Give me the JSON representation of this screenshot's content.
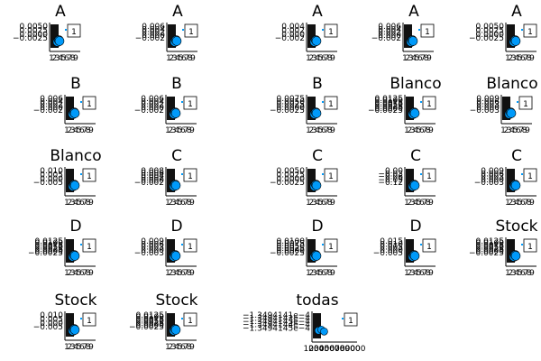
{
  "chart_data": [
    {
      "type": "scatter",
      "title": "A",
      "yticks": [
        "0.0050",
        "0.0025",
        "0.0000",
        "−0.0025"
      ],
      "xticks": [
        "1",
        "2",
        "3",
        "4",
        "5",
        "6",
        "7",
        "8",
        "9"
      ],
      "legend": "1",
      "series": [
        {
          "points": [
            [
              0.7,
              0.3
            ],
            [
              0.9,
              0.4
            ],
            [
              1.0,
              0.35
            ]
          ]
        }
      ],
      "accent": "#009AFA"
    },
    {
      "type": "scatter",
      "title": "A",
      "yticks": [
        "0.006",
        "0.004",
        "0.002",
        "0.000",
        "−0.002"
      ],
      "xticks": [
        "1",
        "2",
        "3",
        "4",
        "5",
        "6",
        "7",
        "8",
        "9"
      ],
      "legend": "1",
      "series": [
        {
          "points": [
            [
              0.7,
              0.3
            ],
            [
              0.9,
              0.4
            ],
            [
              1.0,
              0.35
            ]
          ]
        }
      ],
      "accent": "#009AFA"
    },
    {
      "type": "scatter",
      "title": "A",
      "yticks": [
        "0.004",
        "0.002",
        "0.000",
        "−0.002"
      ],
      "xticks": [
        "1",
        "2",
        "3",
        "4",
        "5",
        "6",
        "7",
        "8",
        "9"
      ],
      "legend": "1",
      "series": [
        {
          "points": [
            [
              0.7,
              0.3
            ],
            [
              0.9,
              0.4
            ],
            [
              1.0,
              0.35
            ]
          ]
        }
      ],
      "accent": "#009AFA"
    },
    {
      "type": "scatter",
      "title": "A",
      "yticks": [
        "0.006",
        "0.004",
        "0.002",
        "0.000",
        "−0.002"
      ],
      "xticks": [
        "1",
        "2",
        "3",
        "4",
        "5",
        "6",
        "7",
        "8",
        "9"
      ],
      "legend": "1",
      "series": [
        {
          "points": [
            [
              0.7,
              0.3
            ],
            [
              0.9,
              0.4
            ],
            [
              1.0,
              0.35
            ]
          ]
        }
      ],
      "accent": "#009AFA"
    },
    {
      "type": "scatter",
      "title": "A",
      "yticks": [
        "0.0050",
        "0.0025",
        "0.0000",
        "−0.0025"
      ],
      "xticks": [
        "1",
        "2",
        "3",
        "4",
        "5",
        "6",
        "7",
        "8",
        "9"
      ],
      "legend": "1",
      "series": [
        {
          "points": [
            [
              0.7,
              0.3
            ],
            [
              0.9,
              0.4
            ],
            [
              1.0,
              0.35
            ]
          ]
        }
      ],
      "accent": "#009AFA"
    },
    {
      "type": "scatter",
      "title": "B",
      "yticks": [
        "0.006",
        "0.004",
        "0.002",
        "0.000",
        "−0.002"
      ],
      "xticks": [
        "1",
        "2",
        "3",
        "4",
        "5",
        "6",
        "7",
        "8",
        "9"
      ],
      "legend": "1",
      "series": [
        {
          "points": [
            [
              0.7,
              0.3
            ],
            [
              0.9,
              0.4
            ],
            [
              1.0,
              0.35
            ]
          ]
        }
      ],
      "accent": "#009AFA"
    },
    {
      "type": "scatter",
      "title": "B",
      "yticks": [
        "0.006",
        "0.004",
        "0.002",
        "0.000",
        "−0.002"
      ],
      "xticks": [
        "1",
        "2",
        "3",
        "4",
        "5",
        "6",
        "7",
        "8",
        "9"
      ],
      "legend": "1",
      "series": [
        {
          "points": [
            [
              0.7,
              0.3
            ],
            [
              0.9,
              0.4
            ],
            [
              1.0,
              0.35
            ]
          ]
        }
      ],
      "accent": "#009AFA"
    },
    {
      "type": "scatter",
      "title": "B",
      "yticks": [
        "0.0075",
        "0.0050",
        "0.0025",
        "0.0000",
        "−0.0025"
      ],
      "xticks": [
        "1",
        "2",
        "3",
        "4",
        "5",
        "6",
        "7",
        "8",
        "9"
      ],
      "legend": "1",
      "series": [
        {
          "points": [
            [
              0.7,
              0.3
            ],
            [
              0.9,
              0.4
            ],
            [
              1.0,
              0.35
            ]
          ]
        }
      ],
      "accent": "#009AFA"
    },
    {
      "type": "scatter",
      "title": "Blanco",
      "yticks": [
        "0.0125",
        "0.0100",
        "0.0075",
        "0.0050",
        "0.0025",
        "0.0000",
        "−0.0025"
      ],
      "xticks": [
        "1",
        "2",
        "3",
        "4",
        "5",
        "6",
        "7",
        "8",
        "9"
      ],
      "legend": "1",
      "series": [
        {
          "points": [
            [
              0.7,
              0.3
            ],
            [
              0.9,
              0.4
            ],
            [
              1.0,
              0.35
            ]
          ]
        }
      ],
      "accent": "#009AFA"
    },
    {
      "type": "scatter",
      "title": "Blanco",
      "yticks": [
        "0.009",
        "0.006",
        "0.003",
        "0.000",
        "−0.003"
      ],
      "xticks": [
        "1",
        "2",
        "3",
        "4",
        "5",
        "6",
        "7",
        "8",
        "9"
      ],
      "legend": "1",
      "series": [
        {
          "points": [
            [
              0.7,
              0.3
            ],
            [
              0.9,
              0.4
            ],
            [
              1.0,
              0.35
            ]
          ]
        }
      ],
      "accent": "#009AFA"
    },
    {
      "type": "scatter",
      "title": "Blanco",
      "yticks": [
        "0.010",
        "0.005",
        "0.000",
        "−0.005"
      ],
      "xticks": [
        "1",
        "2",
        "3",
        "4",
        "5",
        "6",
        "7",
        "8",
        "9"
      ],
      "legend": "1",
      "series": [
        {
          "points": [
            [
              0.7,
              0.3
            ],
            [
              0.9,
              0.4
            ],
            [
              1.0,
              0.35
            ]
          ]
        }
      ],
      "accent": "#009AFA"
    },
    {
      "type": "scatter",
      "title": "C",
      "yticks": [
        "0.008",
        "0.006",
        "0.004",
        "0.002",
        "0.000",
        "−0.002"
      ],
      "xticks": [
        "1",
        "2",
        "3",
        "4",
        "5",
        "6",
        "7",
        "8",
        "9"
      ],
      "legend": "1",
      "series": [
        {
          "points": [
            [
              0.7,
              0.3
            ],
            [
              0.9,
              0.4
            ],
            [
              1.0,
              0.35
            ]
          ]
        }
      ],
      "accent": "#009AFA"
    },
    {
      "type": "scatter",
      "title": "C",
      "yticks": [
        "0.0050",
        "0.0025",
        "0.0000",
        "−0.0025"
      ],
      "xticks": [
        "1",
        "2",
        "3",
        "4",
        "5",
        "6",
        "7",
        "8",
        "9"
      ],
      "legend": "1",
      "series": [
        {
          "points": [
            [
              0.7,
              0.3
            ],
            [
              0.9,
              0.4
            ],
            [
              1.0,
              0.35
            ]
          ]
        }
      ],
      "accent": "#009AFA"
    },
    {
      "type": "scatter",
      "title": "C",
      "yticks": [
        "0.00",
        "−0.03",
        "−0.06",
        "−0.09",
        "−0.12"
      ],
      "xticks": [
        "1",
        "2",
        "3",
        "4",
        "5",
        "6",
        "7",
        "8",
        "9"
      ],
      "legend": "1",
      "series": [
        {
          "points": [
            [
              0.7,
              0.3
            ],
            [
              0.9,
              0.4
            ],
            [
              1.0,
              0.35
            ]
          ]
        }
      ],
      "accent": "#009AFA"
    },
    {
      "type": "scatter",
      "title": "C",
      "yticks": [
        "0.009",
        "0.006",
        "0.003",
        "0.000",
        "−0.003"
      ],
      "xticks": [
        "1",
        "2",
        "3",
        "4",
        "5",
        "6",
        "7",
        "8",
        "9"
      ],
      "legend": "1",
      "series": [
        {
          "points": [
            [
              0.7,
              0.3
            ],
            [
              0.9,
              0.4
            ],
            [
              1.0,
              0.35
            ]
          ]
        }
      ],
      "accent": "#009AFA"
    },
    {
      "type": "scatter",
      "title": "D",
      "yticks": [
        "0.0125",
        "0.0100",
        "0.0075",
        "0.0050",
        "0.0025",
        "0.0000",
        "−0.0025"
      ],
      "xticks": [
        "1",
        "2",
        "3",
        "4",
        "5",
        "6",
        "7",
        "8",
        "9"
      ],
      "legend": "1",
      "series": [
        {
          "points": [
            [
              0.7,
              0.3
            ],
            [
              0.9,
              0.4
            ],
            [
              1.0,
              0.35
            ]
          ]
        }
      ],
      "accent": "#009AFA"
    },
    {
      "type": "scatter",
      "title": "D",
      "yticks": [
        "0.009",
        "0.006",
        "0.003",
        "0.000",
        "−0.003"
      ],
      "xticks": [
        "1",
        "2",
        "3",
        "4",
        "5",
        "6",
        "7",
        "8",
        "9"
      ],
      "legend": "1",
      "series": [
        {
          "points": [
            [
              0.7,
              0.3
            ],
            [
              0.9,
              0.4
            ],
            [
              1.0,
              0.35
            ]
          ]
        }
      ],
      "accent": "#009AFA"
    },
    {
      "type": "scatter",
      "title": "D",
      "yticks": [
        "0.0100",
        "0.0075",
        "0.0050",
        "0.0025",
        "0.0000",
        "−0.0025"
      ],
      "xticks": [
        "1",
        "2",
        "3",
        "4",
        "5",
        "6",
        "7",
        "8",
        "9"
      ],
      "legend": "1",
      "series": [
        {
          "points": [
            [
              0.7,
              0.3
            ],
            [
              0.9,
              0.4
            ],
            [
              1.0,
              0.35
            ]
          ]
        }
      ],
      "accent": "#009AFA"
    },
    {
      "type": "scatter",
      "title": "D",
      "yticks": [
        "0.015",
        "0.010",
        "0.005",
        "0.000",
        "−0.005"
      ],
      "xticks": [
        "1",
        "2",
        "3",
        "4",
        "5",
        "6",
        "7",
        "8",
        "9"
      ],
      "legend": "1",
      "series": [
        {
          "points": [
            [
              0.7,
              0.3
            ],
            [
              0.9,
              0.4
            ],
            [
              1.0,
              0.35
            ]
          ]
        }
      ],
      "accent": "#009AFA"
    },
    {
      "type": "scatter",
      "title": "Stock",
      "yticks": [
        "0.0125",
        "0.0100",
        "0.0075",
        "0.0050",
        "0.0025",
        "0.0000",
        "−0.0025"
      ],
      "xticks": [
        "1",
        "2",
        "3",
        "4",
        "5",
        "6",
        "7",
        "8",
        "9"
      ],
      "legend": "1",
      "series": [
        {
          "points": [
            [
              0.7,
              0.3
            ],
            [
              0.9,
              0.4
            ],
            [
              1.0,
              0.35
            ]
          ]
        }
      ],
      "accent": "#009AFA"
    },
    {
      "type": "scatter",
      "title": "Stock",
      "yticks": [
        "0.010",
        "0.005",
        "0.000",
        "−0.005"
      ],
      "xticks": [
        "1",
        "2",
        "3",
        "4",
        "5",
        "6",
        "7",
        "8",
        "9"
      ],
      "legend": "1",
      "series": [
        {
          "points": [
            [
              0.7,
              0.3
            ],
            [
              0.9,
              0.4
            ],
            [
              1.0,
              0.35
            ]
          ]
        }
      ],
      "accent": "#009AFA"
    },
    {
      "type": "scatter",
      "title": "Stock",
      "yticks": [
        "0.0125",
        "0.0100",
        "0.0075",
        "0.0050",
        "0.0025",
        "0.0000",
        "−0.0025"
      ],
      "xticks": [
        "1",
        "2",
        "3",
        "4",
        "5",
        "6",
        "7",
        "8",
        "9"
      ],
      "legend": "1",
      "series": [
        {
          "points": [
            [
              0.7,
              0.3
            ],
            [
              0.9,
              0.4
            ],
            [
              1.0,
              0.35
            ]
          ]
        }
      ],
      "accent": "#009AFA"
    },
    {
      "type": "scatter",
      "title": "todas",
      "yticks": [
        "−1.3494141e−4",
        "−1.3494142e−4",
        "−1.3494143e−4",
        "−1.3494144e−4",
        "−1.3494145e−4"
      ],
      "xticks": [
        "1000",
        "2000",
        "3000",
        "4000",
        "5000",
        "6000",
        "7000",
        "8000",
        "9000"
      ],
      "legend": "1",
      "series": [
        {
          "points": [
            [
              0.25,
              0.35
            ],
            [
              0.5,
              0.4
            ],
            [
              0.75,
              0.3
            ]
          ]
        }
      ],
      "accent": "#009AFA"
    }
  ]
}
